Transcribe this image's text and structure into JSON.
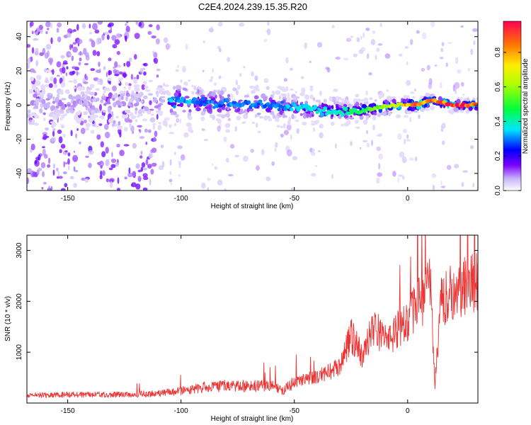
{
  "title": "C2E4.2024.239.15.35.R20",
  "chart_data": [
    {
      "type": "heatmap",
      "xlabel": "Height of straight line (km)",
      "ylabel": "Frequency (Hz)",
      "xlim": [
        -168,
        31
      ],
      "ylim": [
        -50,
        49
      ],
      "xticks": [
        -150,
        -100,
        -50,
        0
      ],
      "yticks": [
        -40,
        -20,
        0,
        20,
        40
      ],
      "colorbar": {
        "label": "Normalized spectral amplitude",
        "range": [
          0,
          0.98
        ],
        "ticks": [
          0.0,
          0.2,
          0.4,
          0.6,
          0.8
        ]
      },
      "ridge": [
        {
          "x": -105,
          "y": 3,
          "amp": 0.35
        },
        {
          "x": -95,
          "y": 2,
          "amp": 0.33
        },
        {
          "x": -85,
          "y": 1,
          "amp": 0.3
        },
        {
          "x": -75,
          "y": 1,
          "amp": 0.32
        },
        {
          "x": -65,
          "y": 0,
          "amp": 0.3
        },
        {
          "x": -55,
          "y": -1,
          "amp": 0.33
        },
        {
          "x": -45,
          "y": -2,
          "amp": 0.38
        },
        {
          "x": -35,
          "y": -3,
          "amp": 0.4
        },
        {
          "x": -25,
          "y": -4,
          "amp": 0.45
        },
        {
          "x": -15,
          "y": -2,
          "amp": 0.55
        },
        {
          "x": -5,
          "y": 0,
          "amp": 0.7
        },
        {
          "x": 5,
          "y": 0,
          "amp": 0.9
        },
        {
          "x": 10,
          "y": 3,
          "amp": 0.85
        },
        {
          "x": 20,
          "y": 0,
          "amp": 0.95
        },
        {
          "x": 30,
          "y": 0,
          "amp": 0.9
        }
      ]
    },
    {
      "type": "line",
      "xlabel": "Height of straight line (km)",
      "ylabel": "SNR (10 * v/v)",
      "xlim": [
        -168,
        31
      ],
      "ylim": [
        0,
        3300
      ],
      "xticks": [
        -150,
        -100,
        -50,
        0
      ],
      "yticks": [
        1000,
        2000,
        3000
      ],
      "color": "#ee3333",
      "series": [
        {
          "x": [
            -168,
            -160,
            -150,
            -140,
            -130,
            -120,
            -110,
            -100,
            -90,
            -80,
            -70,
            -60,
            -55,
            -50,
            -40,
            -30,
            -25,
            -20,
            -15,
            -10,
            -5,
            0,
            5,
            10,
            12,
            15,
            20,
            25,
            31
          ],
          "y": [
            150,
            150,
            160,
            160,
            160,
            170,
            180,
            230,
            300,
            330,
            310,
            350,
            230,
            400,
            500,
            700,
            1300,
            900,
            1500,
            1200,
            1400,
            1600,
            1900,
            2200,
            350,
            2000,
            2100,
            2300,
            2400
          ]
        }
      ]
    }
  ]
}
